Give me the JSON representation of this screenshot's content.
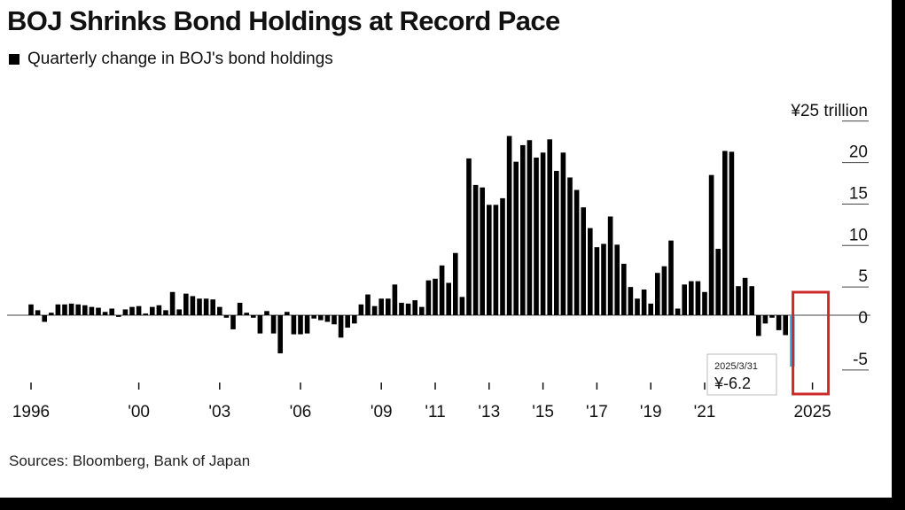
{
  "header": {
    "title": "BOJ Shrinks Bond Holdings at Record Pace",
    "legend_label": "Quarterly change in BOJ's bond holdings"
  },
  "footer": {
    "source": "Sources: Bloomberg, Bank of Japan"
  },
  "colors": {
    "bar": "#000000",
    "highlight_bar": "#4aaee8",
    "highlight_box": "#cc2a2a",
    "gridline": "#444444"
  },
  "chart_data": {
    "type": "bar",
    "title": "BOJ Shrinks Bond Holdings at Record Pace",
    "subtitle": "Quarterly change in BOJ's bond holdings",
    "ylabel": "¥25 trillion",
    "ylim": [
      -5,
      25
    ],
    "yticks": [
      {
        "value": 25,
        "label": "¥25 trillion"
      },
      {
        "value": 20,
        "label": "20"
      },
      {
        "value": 15,
        "label": "15"
      },
      {
        "value": 10,
        "label": "10"
      },
      {
        "value": 5,
        "label": "5"
      },
      {
        "value": 0,
        "label": "0"
      },
      {
        "value": -5,
        "label": "-5"
      }
    ],
    "xticks": [
      {
        "value": 1996.0,
        "label": "1996"
      },
      {
        "value": 2000.0,
        "label": "'00"
      },
      {
        "value": 2003.0,
        "label": "'03"
      },
      {
        "value": 2006.0,
        "label": "'06"
      },
      {
        "value": 2009.0,
        "label": "'09"
      },
      {
        "value": 2011.0,
        "label": "'11"
      },
      {
        "value": 2013.0,
        "label": "'13"
      },
      {
        "value": 2015.0,
        "label": "'15"
      },
      {
        "value": 2017.0,
        "label": "'17"
      },
      {
        "value": 2019.0,
        "label": "'19"
      },
      {
        "value": 2021.0,
        "label": "'21"
      },
      {
        "value": 2025.0,
        "label": "2025"
      }
    ],
    "x_start": 1996.0,
    "x_step": 0.25,
    "values": [
      1.3,
      0.6,
      -0.8,
      0.3,
      1.3,
      1.3,
      1.4,
      1.3,
      1.2,
      1.0,
      0.9,
      0.4,
      0.8,
      -0.2,
      0.7,
      1.0,
      1.1,
      0.2,
      1.0,
      1.2,
      0.6,
      2.8,
      0.7,
      2.6,
      2.3,
      2.0,
      2.0,
      1.9,
      1.0,
      -0.3,
      -1.7,
      1.5,
      0.3,
      -0.3,
      -2.2,
      0.5,
      -2.2,
      -4.6,
      0.4,
      -2.3,
      -2.3,
      -2.2,
      -0.4,
      -0.6,
      -0.8,
      -1.1,
      -2.7,
      -1.5,
      -1.0,
      1.3,
      2.5,
      1.1,
      2.0,
      2.0,
      3.7,
      1.5,
      1.4,
      1.8,
      1.0,
      4.2,
      4.4,
      6.0,
      3.9,
      7.5,
      2.2,
      18.9,
      15.7,
      15.4,
      13.3,
      13.3,
      14.1,
      21.6,
      18.5,
      20.5,
      21.1,
      19.0,
      19.6,
      21.2,
      17.4,
      19.6,
      16.6,
      15.1,
      13.0,
      10.5,
      8.2,
      8.6,
      11.9,
      8.5,
      6.2,
      3.4,
      2.0,
      3.1,
      1.4,
      5.1,
      5.9,
      9.0,
      0.8,
      3.7,
      4.1,
      4.1,
      2.8,
      16.9,
      8.0,
      19.8,
      19.7,
      3.5,
      4.5,
      3.5,
      -2.5,
      -1.0,
      -0.3,
      -1.8,
      -2.4,
      -6.2
    ],
    "highlight": {
      "x": 2025.0,
      "value": -6.2,
      "date": "2025/3/31",
      "value_label": "¥-6.2"
    }
  }
}
